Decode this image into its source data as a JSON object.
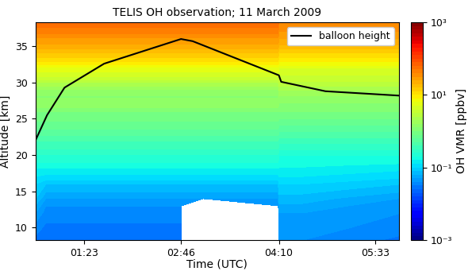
{
  "chart_data": {
    "type": "contour",
    "title": "TELIS OH observation; 11 March 2009",
    "x_label": "Time (UTC)",
    "y_label": "Altitude [km]",
    "color": "jet",
    "x": [
      41,
      50,
      83,
      120,
      166,
      166.5,
      185,
      249.5,
      250,
      270,
      310,
      353
    ],
    "y": [
      8.3,
      10,
      12,
      13,
      14,
      16,
      18,
      20,
      22,
      24,
      26,
      27,
      28,
      29,
      30,
      32,
      34,
      36,
      38.3
    ],
    "values": [
      [
        0.03,
        0.03,
        0.03,
        0.03,
        0.03,
        null,
        null,
        null,
        0.04,
        0.04,
        0.035,
        0.03
      ],
      [
        0.035,
        0.03,
        0.03,
        0.03,
        0.03,
        null,
        null,
        null,
        0.045,
        0.045,
        0.04,
        0.035
      ],
      [
        0.05,
        0.035,
        0.035,
        0.035,
        0.035,
        null,
        null,
        null,
        0.05,
        0.05,
        0.045,
        0.04
      ],
      [
        0.06,
        0.04,
        0.04,
        0.04,
        0.04,
        0.04,
        null,
        0.04,
        0.06,
        0.06,
        0.05,
        0.045
      ],
      [
        0.08,
        0.05,
        0.05,
        0.05,
        0.05,
        0.05,
        0.05,
        0.05,
        0.07,
        0.07,
        0.06,
        0.05
      ],
      [
        0.1,
        0.08,
        0.08,
        0.08,
        0.08,
        0.08,
        0.08,
        0.08,
        0.1,
        0.1,
        0.09,
        0.08
      ],
      [
        0.15,
        0.15,
        0.15,
        0.15,
        0.15,
        0.15,
        0.15,
        0.15,
        0.15,
        0.15,
        0.14,
        0.13
      ],
      [
        0.25,
        0.25,
        0.25,
        0.25,
        0.25,
        0.25,
        0.25,
        0.25,
        0.2,
        0.2,
        0.2,
        0.2
      ],
      [
        0.4,
        0.4,
        0.4,
        0.4,
        0.4,
        0.4,
        0.4,
        0.4,
        0.35,
        0.35,
        0.35,
        0.35
      ],
      [
        0.7,
        0.7,
        0.7,
        0.7,
        0.7,
        0.7,
        0.7,
        0.7,
        0.6,
        0.6,
        0.6,
        0.6
      ],
      [
        1.0,
        1.0,
        1.0,
        1.0,
        1.0,
        1.0,
        1.0,
        1.0,
        1.0,
        1.0,
        1.0,
        1.0
      ],
      [
        1.5,
        1.5,
        1.5,
        1.5,
        1.5,
        1.5,
        1.5,
        1.5,
        1.2,
        1.2,
        1.2,
        1.2
      ],
      [
        1.2,
        1.2,
        1.2,
        1.2,
        1.2,
        1.2,
        1.2,
        1.2,
        1.5,
        1.5,
        1.5,
        1.5
      ],
      [
        1.5,
        1.5,
        1.5,
        1.5,
        1.5,
        1.5,
        1.5,
        1.5,
        2.0,
        2.0,
        2.0,
        2.0
      ],
      [
        2.5,
        2.5,
        2.5,
        2.5,
        2.5,
        2.5,
        2.5,
        2.5,
        3.0,
        3.0,
        3.0,
        3.0
      ],
      [
        6,
        6,
        6,
        6,
        6,
        6,
        6,
        6,
        5,
        5,
        5,
        5
      ],
      [
        15,
        15,
        15,
        15,
        15,
        15,
        15,
        15,
        12,
        12,
        12,
        12
      ],
      [
        30,
        30,
        30,
        30,
        30,
        30,
        30,
        30,
        25,
        25,
        25,
        25
      ],
      [
        60,
        60,
        60,
        60,
        60,
        60,
        60,
        60,
        40,
        40,
        40,
        40
      ]
    ],
    "series": [
      {
        "name": "balloon height",
        "color": "#000000",
        "x": [
          41,
          51,
          66,
          100,
          166,
          176,
          250,
          252,
          290,
          353
        ],
        "values": [
          22,
          25.5,
          29.3,
          32.6,
          36,
          35.7,
          31,
          30.1,
          28.8,
          28.2
        ]
      }
    ],
    "legend": "upper right",
    "xlim": [
      41,
      353
    ],
    "xticks": [
      {
        "value": 83,
        "label": "01:23"
      },
      {
        "value": 166,
        "label": "02:46"
      },
      {
        "value": 250,
        "label": "04:10"
      },
      {
        "value": 333,
        "label": "05:33"
      }
    ],
    "ylim": [
      8.3,
      38.3
    ],
    "yticks": [
      10,
      15,
      20,
      25,
      30,
      35
    ],
    "colorbar_label": "OH VMR [ppbv]",
    "colorbar_range": [
      0.001,
      1000
    ],
    "colorbar_ticks": [
      {
        "value": 0.001,
        "label": "10⁻³"
      },
      {
        "value": 0.1,
        "label": "10⁻¹"
      },
      {
        "value": 10,
        "label": "10¹"
      },
      {
        "value": 1000,
        "label": "10³"
      }
    ]
  }
}
